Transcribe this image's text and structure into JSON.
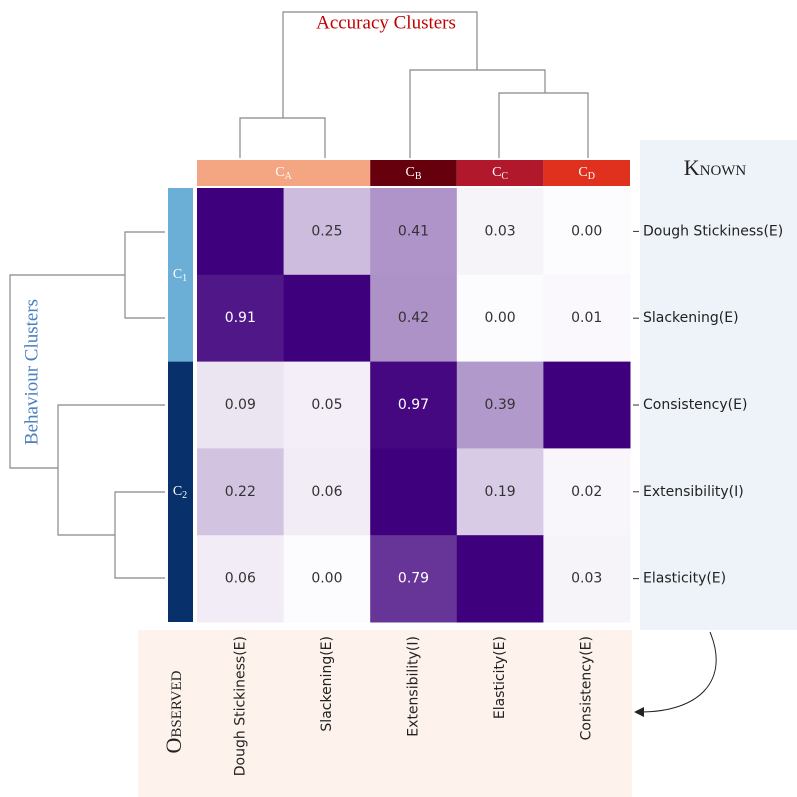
{
  "chart_data": {
    "type": "heatmap",
    "title": "Accuracy Clusters",
    "y_axis_title": "Behaviour Clusters",
    "row_panel_label": "Known",
    "col_panel_label": "Observed",
    "rows": [
      "Dough Stickiness(E)",
      "Slackening(E)",
      "Consistency(E)",
      "Extensibility(I)",
      "Elasticity(E)"
    ],
    "columns": [
      "Dough Stickiness(E)",
      "Slackening(E)",
      "Extensibility(I)",
      "Elasticity(E)",
      "Consistency(E)"
    ],
    "values": [
      [
        1,
        0.25,
        0.41,
        0.03,
        0.0
      ],
      [
        0.91,
        1,
        0.42,
        0.0,
        0.01
      ],
      [
        0.09,
        0.05,
        0.97,
        0.39,
        1
      ],
      [
        0.22,
        0.06,
        1,
        0.19,
        0.02
      ],
      [
        0.06,
        0.0,
        0.79,
        1,
        0.03
      ]
    ],
    "value_labels": [
      [
        null,
        "0.25",
        "0.41",
        "0.03",
        "0.00"
      ],
      [
        "0.91",
        null,
        "0.42",
        "0.00",
        "0.01"
      ],
      [
        "0.09",
        "0.05",
        "0.97",
        "0.39",
        null
      ],
      [
        "0.22",
        "0.06",
        null,
        "0.19",
        "0.02"
      ],
      [
        "0.06",
        "0.00",
        "0.79",
        null,
        "0.03"
      ]
    ],
    "colormap": [
      "#fcfbfd",
      "#3f007d"
    ],
    "col_clusters": [
      {
        "letter": "C",
        "sub": "A",
        "color": "#f4a582"
      },
      {
        "letter": "C",
        "sub": "B",
        "color": "#67000d"
      },
      {
        "letter": "C",
        "sub": "C",
        "color": "#b2182b"
      },
      {
        "letter": "C",
        "sub": "D",
        "color": "#e0301e"
      }
    ],
    "row_clusters": [
      {
        "letter": "C",
        "sub": "1",
        "color": "#6baed6"
      },
      {
        "letter": "C",
        "sub": "2",
        "color": "#08306b"
      }
    ]
  }
}
